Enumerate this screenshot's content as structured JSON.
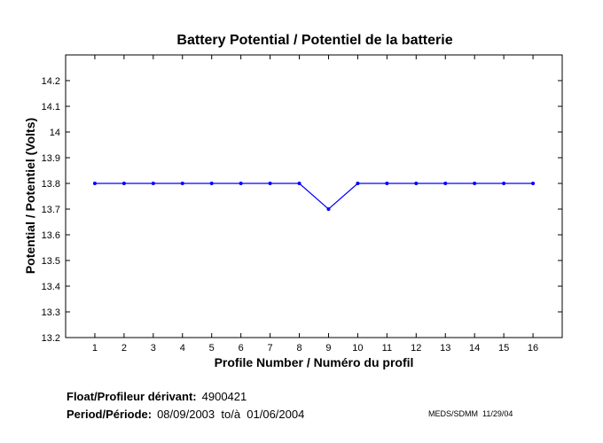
{
  "chart_data": {
    "type": "line",
    "title": "Battery Potential / Potentiel de la batterie",
    "xlabel": "Profile Number / Numéro du profil",
    "ylabel": "Potential / Potentiel (Volts)",
    "x": [
      1,
      2,
      3,
      4,
      5,
      6,
      7,
      8,
      9,
      10,
      11,
      12,
      13,
      14,
      15,
      16
    ],
    "series": [
      {
        "values": [
          13.8,
          13.8,
          13.8,
          13.8,
          13.8,
          13.8,
          13.8,
          13.8,
          13.7,
          13.8,
          13.8,
          13.8,
          13.8,
          13.8,
          13.8,
          13.8
        ]
      }
    ],
    "xlim": [
      0,
      17
    ],
    "ylim": [
      13.2,
      14.3
    ],
    "xticks": [
      1,
      2,
      3,
      4,
      5,
      6,
      7,
      8,
      9,
      10,
      11,
      12,
      13,
      14,
      15,
      16
    ],
    "yticks": [
      13.2,
      13.3,
      13.4,
      13.5,
      13.6,
      13.7,
      13.8,
      13.9,
      14,
      14.1,
      14.2
    ],
    "ytick_labels": [
      "13.2",
      "13.3",
      "13.4",
      "13.5",
      "13.6",
      "13.7",
      "13.8",
      "13.9",
      "14",
      "14.1",
      "14.2"
    ],
    "grid": false,
    "line_color": "#0000ff"
  },
  "footer": {
    "float_label": "Float/Profileur dérivant:",
    "float_value": "4900421",
    "period_label": "Period/Période:",
    "period_value": "08/09/2003  to/à  01/06/2004",
    "stamp": "MEDS/SDMM  11/29/04"
  }
}
